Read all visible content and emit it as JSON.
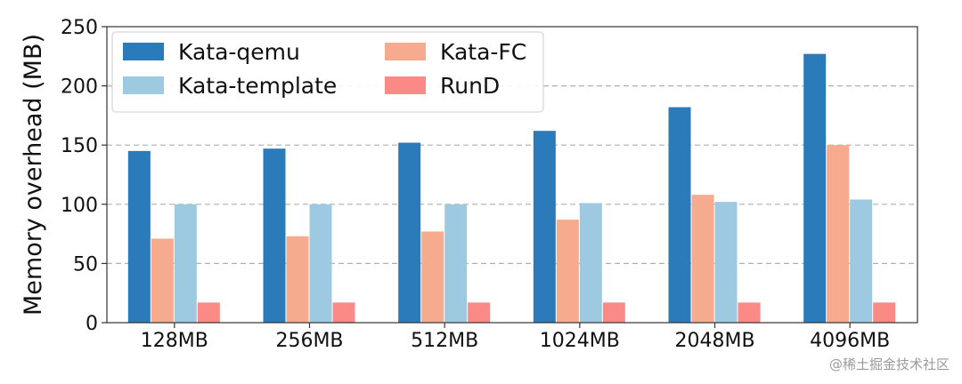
{
  "chart_data": {
    "type": "bar",
    "title": "",
    "xlabel": "",
    "ylabel": "Memory overhead (MB)",
    "ylim": [
      0,
      250
    ],
    "yticks": [
      0,
      50,
      100,
      150,
      200,
      250
    ],
    "grid": "horizontal dashed",
    "legend_position": "top-left",
    "legend_columns": 2,
    "categories": [
      "128MB",
      "256MB",
      "512MB",
      "1024MB",
      "2048MB",
      "4096MB"
    ],
    "series": [
      {
        "name": "Kata-qemu",
        "color": "#2b7bba",
        "values": [
          145,
          147,
          152,
          162,
          182,
          227
        ]
      },
      {
        "name": "Kata-FC",
        "color": "#f6ab8e",
        "values": [
          71,
          73,
          77,
          87,
          108,
          150
        ]
      },
      {
        "name": "Kata-template",
        "color": "#9ecae1",
        "values": [
          100,
          100,
          100,
          101,
          102,
          104
        ]
      },
      {
        "name": "RunD",
        "color": "#fb8a87",
        "values": [
          17,
          17,
          17,
          17,
          17,
          17
        ]
      }
    ],
    "legend_order": [
      "Kata-qemu",
      "Kata-template",
      "Kata-FC",
      "RunD"
    ]
  },
  "watermark": "@稀土掘金技术社区"
}
